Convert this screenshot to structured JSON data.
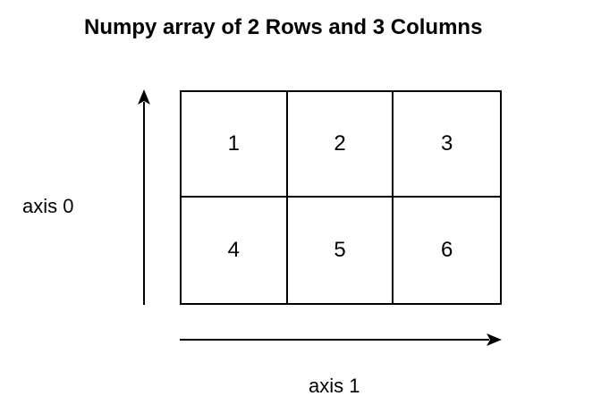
{
  "title": "Numpy array of 2 Rows and 3 Columns",
  "axis0_label": "axis 0",
  "axis1_label": "axis 1",
  "array": {
    "rows": [
      [
        "1",
        "2",
        "3"
      ],
      [
        "4",
        "5",
        "6"
      ]
    ]
  },
  "colors": {
    "stroke": "#000000",
    "background": "#ffffff"
  }
}
